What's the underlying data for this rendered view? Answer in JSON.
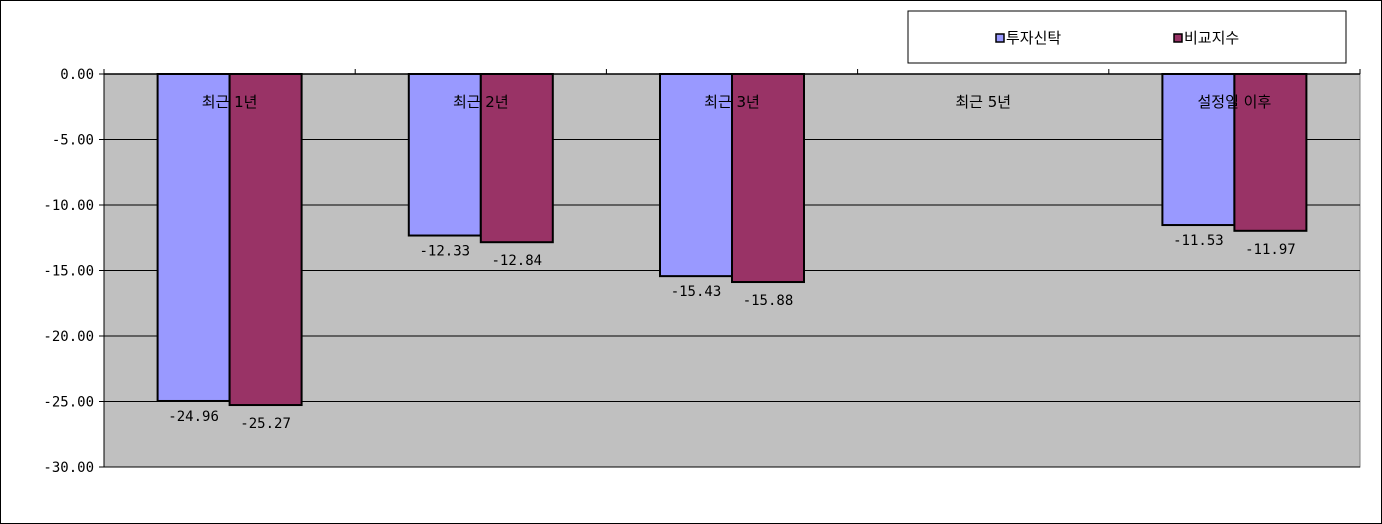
{
  "chart_data": {
    "type": "bar",
    "categories": [
      "최근 1년",
      "최근 2년",
      "최근 3년",
      "최근 5년",
      "설정일 이후"
    ],
    "series": [
      {
        "name": "투자신탁",
        "values": [
          -24.96,
          -12.33,
          -15.43,
          null,
          -11.53
        ],
        "color": "#9999ff"
      },
      {
        "name": "비교지수",
        "values": [
          -25.27,
          -12.84,
          -15.88,
          null,
          -11.97
        ],
        "color": "#993366"
      }
    ],
    "value_labels": [
      [
        "-24.96",
        "-12.33",
        "-15.43",
        "",
        "-11.53"
      ],
      [
        "-25.27",
        "-12.84",
        "-15.88",
        "",
        "-11.97"
      ]
    ],
    "ylim": [
      -30,
      0
    ],
    "yticks": [
      "0.00",
      "-5.00",
      "-10.00",
      "-15.00",
      "-20.00",
      "-25.00",
      "-30.00"
    ],
    "ytick_values": [
      0,
      -5,
      -10,
      -15,
      -20,
      -25,
      -30
    ],
    "grid": true,
    "legend_position": "top-right",
    "plot_background": "#c0c0c0",
    "title": "",
    "xlabel": "",
    "ylabel": ""
  }
}
